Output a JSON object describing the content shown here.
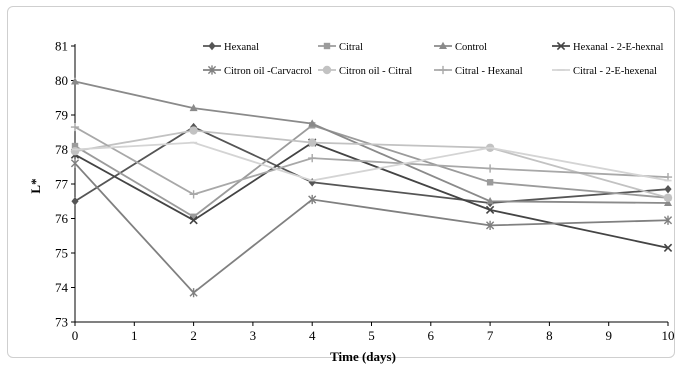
{
  "chart_data": {
    "type": "line",
    "xlabel": "Time (days)",
    "ylabel": "L*",
    "xlim": [
      0,
      10
    ],
    "ylim": [
      73,
      81
    ],
    "xticks": [
      0,
      1,
      2,
      3,
      4,
      5,
      6,
      7,
      8,
      9,
      10
    ],
    "yticks": [
      73,
      74,
      75,
      76,
      77,
      78,
      79,
      80,
      81
    ],
    "grid": false,
    "legend_position": "top",
    "x": [
      0,
      2,
      4,
      7,
      10
    ],
    "series": [
      {
        "name": "Hexanal",
        "color": "#555555",
        "marker": "diamond",
        "values": [
          76.5,
          78.65,
          77.05,
          76.45,
          76.85
        ]
      },
      {
        "name": "Citral",
        "color": "#9b9b9b",
        "marker": "square",
        "values": [
          78.1,
          76.05,
          78.7,
          77.05,
          76.6
        ]
      },
      {
        "name": "Control",
        "color": "#8a8a8a",
        "marker": "triangle",
        "values": [
          79.97,
          79.2,
          78.75,
          76.5,
          76.45
        ]
      },
      {
        "name": "Hexanal - 2-E-hexnal",
        "color": "#444444",
        "marker": "x",
        "values": [
          77.85,
          75.95,
          78.2,
          76.25,
          75.15
        ]
      },
      {
        "name": "Citron oil -Carvacrol",
        "color": "#808080",
        "marker": "star",
        "values": [
          77.6,
          73.85,
          76.55,
          75.8,
          75.95
        ]
      },
      {
        "name": "Citron oil - Citral",
        "color": "#c2c2c2",
        "marker": "circle",
        "values": [
          77.95,
          78.55,
          78.2,
          78.05,
          76.6
        ]
      },
      {
        "name": "Citral - Hexanal",
        "color": "#a8a8a8",
        "marker": "plus",
        "values": [
          78.65,
          76.7,
          77.75,
          77.45,
          77.2
        ]
      },
      {
        "name": "Citral - 2-E-hexenal",
        "color": "#d4d4d4",
        "marker": "dash",
        "values": [
          78.0,
          78.2,
          77.1,
          78.05,
          77.1
        ]
      }
    ]
  }
}
